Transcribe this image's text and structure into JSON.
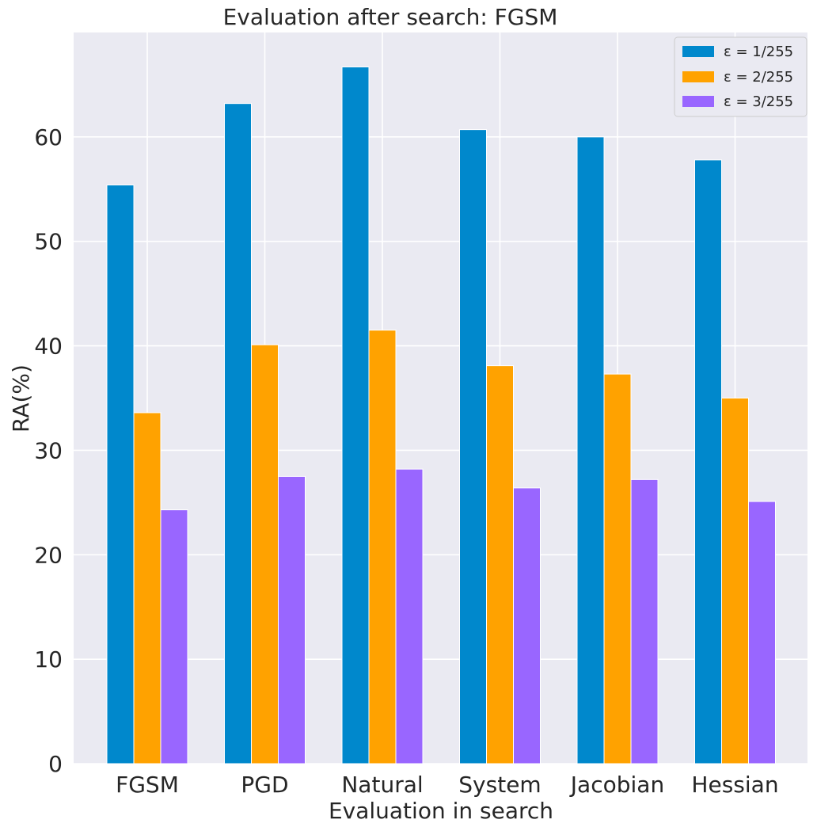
{
  "chart_data": {
    "type": "bar",
    "title": "Evaluation after search: FGSM",
    "xlabel": "Evaluation in search",
    "ylabel": "RA(%)",
    "categories": [
      "FGSM",
      "PGD",
      "Natural",
      "System",
      "Jacobian",
      "Hessian"
    ],
    "series": [
      {
        "name": "ε = 1/255",
        "color": "#0088cc",
        "values": [
          55.4,
          63.2,
          66.7,
          60.7,
          60.0,
          57.8
        ]
      },
      {
        "name": "ε = 2/255",
        "color": "#ffa200",
        "values": [
          33.6,
          40.1,
          41.5,
          38.1,
          37.3,
          35.0
        ]
      },
      {
        "name": "ε = 3/255",
        "color": "#9966ff",
        "values": [
          24.3,
          27.5,
          28.2,
          26.4,
          27.2,
          25.1
        ]
      }
    ],
    "yticks": [
      0,
      10,
      20,
      30,
      40,
      50,
      60
    ],
    "ylim": [
      0,
      70
    ],
    "grid": true,
    "legend_position": "top-right",
    "background_color": "#eaeaf2"
  }
}
